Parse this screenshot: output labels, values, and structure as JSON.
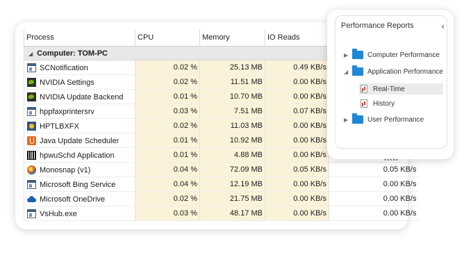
{
  "columns": {
    "process": "Process",
    "cpu": "CPU",
    "memory": "Memory",
    "io_reads": "IO Reads"
  },
  "group": {
    "label": "Computer: TOM-PC"
  },
  "rows": [
    {
      "name": "SCNotification",
      "icon": "window-icon",
      "cpu": "0.02 %",
      "memory": "25.13 MB",
      "io_reads": "0.49 KB/s",
      "io_writes": ""
    },
    {
      "name": "NVIDIA Settings",
      "icon": "nvidia-icon",
      "cpu": "0.02 %",
      "memory": "11.51 MB",
      "io_reads": "0.00 KB/s",
      "io_writes": ""
    },
    {
      "name": "NVIDIA Update Backend",
      "icon": "nvidia-icon",
      "cpu": "0.01 %",
      "memory": "10.70 MB",
      "io_reads": "0.00 KB/s",
      "io_writes": ""
    },
    {
      "name": "hppfaxprintersrv",
      "icon": "window-icon",
      "cpu": "0.03 %",
      "memory": "7.51 MB",
      "io_reads": "0.07 KB/s",
      "io_writes": ""
    },
    {
      "name": "HPTLBXFX",
      "icon": "hp-toolbox-icon",
      "cpu": "0.02 %",
      "memory": "11.03 MB",
      "io_reads": "0.00 KB/s",
      "io_writes": ""
    },
    {
      "name": "Java Update Scheduler",
      "icon": "java-icon",
      "cpu": "0.01 %",
      "memory": "10.92 MB",
      "io_reads": "0.00 KB/s",
      "io_writes": ""
    },
    {
      "name": "hpwuSchd Application",
      "icon": "barcode-icon",
      "cpu": "0.01 %",
      "memory": "4.88 MB",
      "io_reads": "0.00 KB/s",
      "io_writes": ""
    },
    {
      "name": "Monosnap (v1)",
      "icon": "monosnap-icon",
      "cpu": "0.04 %",
      "memory": "72.09 MB",
      "io_reads": "0.05 KB/s",
      "io_writes": "0.05 KB/s"
    },
    {
      "name": "Microsoft Bing Service",
      "icon": "window-icon",
      "cpu": "0.04 %",
      "memory": "12.19 MB",
      "io_reads": "0.00 KB/s",
      "io_writes": "0.00 KB/s"
    },
    {
      "name": "Microsoft OneDrive",
      "icon": "onedrive-icon",
      "cpu": "0.02 %",
      "memory": "21.75 MB",
      "io_reads": "0.00 KB/s",
      "io_writes": "0.00 KB/s"
    },
    {
      "name": "VsHub.exe",
      "icon": "window-icon",
      "cpu": "0.03 %",
      "memory": "48.17 MB",
      "io_reads": "0.00 KB/s",
      "io_writes": "0.00 KB/s"
    }
  ],
  "popup": {
    "title": "Performance Reports",
    "collapse_glyph": "‹",
    "tree": {
      "computer_performance": "Computer Performance",
      "application_performance": "Application Performance",
      "real_time": "Real-Time",
      "history": "History",
      "user_performance": "User Performance"
    },
    "handle_glyph": "•••••"
  },
  "colors": {
    "highlight_cell": "#fbf3d9",
    "group_row": "#e8e8e8",
    "folder": "#1e88d6"
  }
}
